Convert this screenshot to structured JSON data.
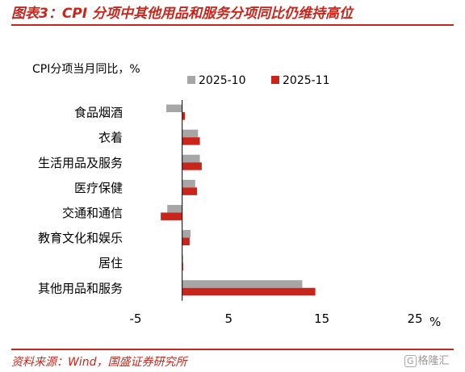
{
  "title": "图表3：CPI 分项中其他用品和服务分项同比仍维持高位",
  "source": "资料来源：Wind，国盛证券研究所",
  "watermark": "格隆汇",
  "watermark_icon": "G",
  "colors": {
    "accent": "#c8261c",
    "series_2025_10": "#a6a6a6",
    "series_2025_11": "#c8261c"
  },
  "chart_data": {
    "type": "bar",
    "orientation": "horizontal",
    "ylabel": "CPI分项当月同比，%",
    "xunit": "%",
    "categories": [
      "食品烟酒",
      "衣着",
      "生活用品及服务",
      "医疗保健",
      "交通和通信",
      "教育文化和娱乐",
      "居住",
      "其他用品和服务"
    ],
    "series": [
      {
        "name": "2025-10",
        "values": [
          -1.7,
          1.7,
          1.9,
          1.4,
          -1.6,
          0.9,
          0.1,
          12.9
        ]
      },
      {
        "name": "2025-11",
        "values": [
          0.3,
          1.9,
          2.1,
          1.6,
          -2.3,
          0.8,
          0.1,
          14.3
        ]
      }
    ],
    "xlim": [
      -5,
      25
    ],
    "xticks": [
      "-5",
      "5",
      "15",
      "25"
    ],
    "legend_position": "top-right",
    "grid": false
  }
}
